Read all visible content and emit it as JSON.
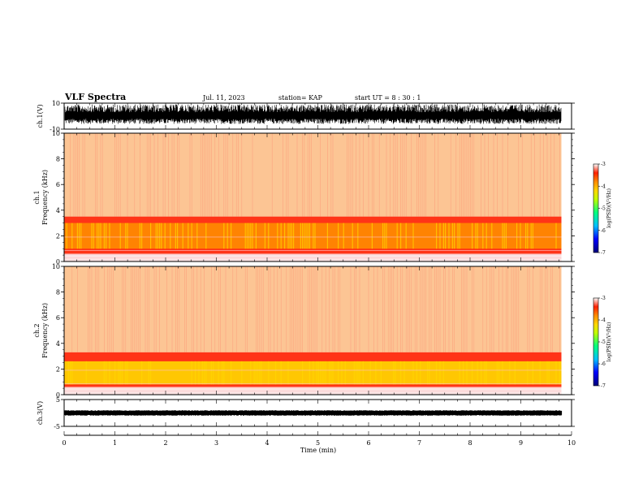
{
  "header": {
    "title": "VLF Spectra",
    "date": "Jul. 11, 2023",
    "station": "station= KAP",
    "start": "start UT = 8 : 30 : 1"
  },
  "chart_data": [
    {
      "type": "line",
      "name": "waveform-ch1",
      "ylabel": "ch.1(V)",
      "ylim": [
        -10,
        10
      ],
      "ytick_labels": [
        "10",
        "-10"
      ],
      "xlim": [
        0,
        10
      ],
      "data_end_min": 9.8,
      "amplitude_envelope_V": [
        -6,
        9
      ]
    },
    {
      "type": "heatmap",
      "name": "spectrogram-ch1",
      "ylabel": "ch.1\nFrequency (kHz)",
      "ylim": [
        0,
        10
      ],
      "ytick_labels": [
        "0",
        "2",
        "4",
        "6",
        "8",
        "10"
      ],
      "xlim": [
        0,
        10
      ],
      "data_end_min": 9.8,
      "colorbar": {
        "label": "log(PSD)(V²/Hz)",
        "range": [
          -7,
          -3
        ],
        "tick_labels": [
          "-3",
          "-4",
          "-5",
          "-6",
          "-7"
        ]
      },
      "bands": [
        {
          "from_kHz": 3.5,
          "to_kHz": 10,
          "level": -3.8
        },
        {
          "from_kHz": 0.6,
          "to_kHz": 3.5,
          "level": -3.3
        },
        {
          "from_kHz": 1.0,
          "to_kHz": 3.0,
          "level": -3.9
        }
      ]
    },
    {
      "type": "heatmap",
      "name": "spectrogram-ch2",
      "ylabel": "ch.2\nFrequency (kHz)",
      "ylim": [
        0,
        10
      ],
      "ytick_labels": [
        "0",
        "2",
        "4",
        "6",
        "8",
        "10"
      ],
      "xlim": [
        0,
        10
      ],
      "data_end_min": 9.8,
      "colorbar": {
        "label": "log(PSD)(V²/Hz)",
        "range": [
          -7,
          -3
        ],
        "tick_labels": [
          "-3",
          "-4",
          "-5",
          "-6",
          "-7"
        ]
      },
      "bands": [
        {
          "from_kHz": 3.3,
          "to_kHz": 10,
          "level": -3.8
        },
        {
          "from_kHz": 0.6,
          "to_kHz": 3.3,
          "level": -3.3
        },
        {
          "from_kHz": 0.8,
          "to_kHz": 2.6,
          "level": -4.6
        }
      ]
    },
    {
      "type": "line",
      "name": "waveform-ch3",
      "ylabel": "ch.3(V)",
      "ylim": [
        -5,
        5
      ],
      "ytick_labels": [
        "5",
        "-5"
      ],
      "xlim": [
        0,
        10
      ],
      "data_end_min": 9.8,
      "amplitude_envelope_V": [
        -1,
        1
      ]
    }
  ],
  "xaxis": {
    "label": "Time (min)",
    "range": [
      0,
      10
    ],
    "tick_labels": [
      "0",
      "1",
      "2",
      "3",
      "4",
      "5",
      "6",
      "7",
      "8",
      "9",
      "10"
    ]
  }
}
